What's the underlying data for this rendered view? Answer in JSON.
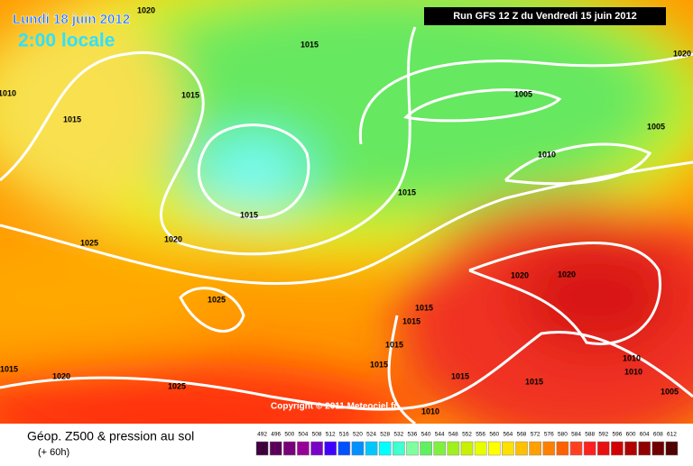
{
  "header": {
    "date": "Lundi 18 juin 2012",
    "time": "2:00 locale",
    "run": "Run GFS 12 Z du Vendredi 15 juin 2012"
  },
  "isobar_labels": [
    "1020",
    "1015",
    "1010",
    "1015",
    "1015",
    "1005",
    "1005",
    "1010",
    "1015",
    "1015",
    "1020",
    "1025",
    "1020",
    "1020",
    "1025",
    "1015",
    "1015",
    "1015",
    "1015",
    "1010",
    "1010",
    "1015",
    "1020",
    "1015",
    "1025",
    "1015",
    "1005",
    "1010",
    "1020"
  ],
  "copyright": "Copyright © 2011 Meteociel.fr",
  "legend": {
    "title": "Géop. Z500 & pression au sol",
    "subtitle": "(+ 60h)",
    "labels": [
      492,
      496,
      500,
      504,
      508,
      512,
      516,
      520,
      524,
      528,
      532,
      536,
      540,
      544,
      548,
      552,
      556,
      560,
      564,
      568,
      572,
      576,
      580,
      584,
      588,
      592,
      596,
      600,
      604,
      608,
      612
    ],
    "colors": [
      "#3c003c",
      "#5a005a",
      "#780078",
      "#960096",
      "#7a00c8",
      "#4000ff",
      "#0050ff",
      "#0090ff",
      "#00c8ff",
      "#00ffff",
      "#40ffd0",
      "#80ffa0",
      "#60f060",
      "#80f040",
      "#a0f020",
      "#c8f000",
      "#e8ff00",
      "#ffff00",
      "#ffe000",
      "#ffc000",
      "#ffa000",
      "#ff8000",
      "#ff6000",
      "#ff4020",
      "#ff2020",
      "#e81010",
      "#d00000",
      "#b00000",
      "#900000",
      "#700000",
      "#500000"
    ]
  }
}
